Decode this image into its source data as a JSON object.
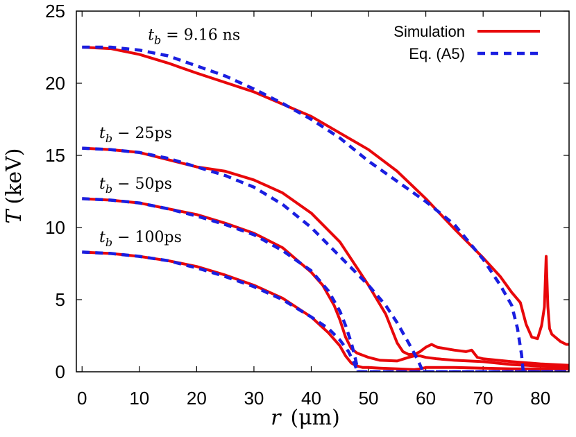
{
  "chart_data": {
    "type": "line",
    "xlabel_var": "r",
    "xlabel_unit": "(μm)",
    "ylabel_var": "T",
    "ylabel_unit": "(keV)",
    "xlim": [
      -1,
      85
    ],
    "ylim": [
      0,
      25
    ],
    "xticks": [
      0,
      10,
      20,
      30,
      40,
      50,
      60,
      70,
      80
    ],
    "yticks": [
      0,
      5,
      10,
      15,
      20,
      25
    ],
    "colors": {
      "simulation": "#e8070a",
      "model": "#1a1ee0"
    },
    "legend": {
      "position": "top-right",
      "entries": [
        {
          "label": "Simulation",
          "style": "solid",
          "color": "#e8070a"
        },
        {
          "label": "Eq. (A5)",
          "style": "dashed",
          "color": "#1a1ee0"
        }
      ]
    },
    "curve_labels": [
      {
        "var": "t",
        "sub": "b",
        "rest": " = 9.16 ns",
        "anchor": [
          11.5,
          23.0
        ]
      },
      {
        "var": "t",
        "sub": "b",
        "rest": " − 25ps",
        "anchor": [
          3.0,
          16.2
        ]
      },
      {
        "var": "t",
        "sub": "b",
        "rest": " − 50ps",
        "anchor": [
          3.0,
          12.7
        ]
      },
      {
        "var": "t",
        "sub": "b",
        "rest": " − 100ps",
        "anchor": [
          3.0,
          9.0
        ]
      }
    ],
    "series": [
      {
        "name": "t_b = 9.16 ns simulation",
        "kind": "simulation",
        "x": [
          0,
          5,
          10,
          15,
          20,
          30,
          40,
          50,
          55,
          60,
          65,
          70,
          73,
          75,
          76.5,
          77.5,
          78.5,
          79.5,
          80.2,
          80.7,
          81.0,
          81.3,
          81.6,
          82.0,
          82.6,
          83.5,
          84.5,
          85
        ],
        "y": [
          22.5,
          22.4,
          22.0,
          21.4,
          20.7,
          19.4,
          17.7,
          15.4,
          13.9,
          12.0,
          9.9,
          7.9,
          6.6,
          5.5,
          4.8,
          3.3,
          2.4,
          2.3,
          3.2,
          4.5,
          8.0,
          4.5,
          3.0,
          2.6,
          2.4,
          2.1,
          1.9,
          1.9
        ]
      },
      {
        "name": "t_b = 9.16 ns Eq. (A5)",
        "kind": "model",
        "x": [
          0,
          5,
          10,
          15,
          20,
          25,
          30,
          35,
          40,
          45,
          50,
          55,
          60,
          65,
          70,
          73,
          75,
          76,
          76.7,
          77,
          85
        ],
        "y": [
          22.5,
          22.5,
          22.3,
          21.9,
          21.2,
          20.5,
          19.6,
          18.6,
          17.5,
          16.2,
          14.6,
          13.2,
          11.8,
          10.2,
          7.8,
          6.0,
          4.6,
          3.0,
          1.2,
          0.0,
          0.0
        ]
      },
      {
        "name": "t_b − 25ps simulation",
        "kind": "simulation",
        "x": [
          0,
          5,
          10,
          15,
          20,
          25,
          30,
          35,
          40,
          45,
          50,
          53,
          55,
          56,
          57,
          58,
          59,
          60,
          61,
          62,
          65,
          67,
          68,
          69,
          70,
          75,
          80,
          85
        ],
        "y": [
          15.5,
          15.4,
          15.2,
          14.7,
          14.2,
          13.9,
          13.3,
          12.4,
          11.0,
          9.0,
          6.0,
          4.0,
          2.0,
          1.4,
          1.2,
          1.2,
          1.4,
          1.7,
          1.9,
          1.7,
          1.5,
          1.4,
          1.5,
          1.0,
          0.9,
          0.7,
          0.55,
          0.45
        ]
      },
      {
        "name": "t_b − 25ps Eq. (A5)",
        "kind": "model",
        "x": [
          0,
          5,
          10,
          15,
          20,
          25,
          30,
          35,
          40,
          45,
          50,
          53,
          55,
          57,
          58.5,
          59.3,
          59.7,
          85
        ],
        "y": [
          15.5,
          15.4,
          15.2,
          14.8,
          14.2,
          13.6,
          12.8,
          11.6,
          10.0,
          8.0,
          6.0,
          4.6,
          3.4,
          2.0,
          0.9,
          0.2,
          0.0,
          0.0
        ]
      },
      {
        "name": "t_b − 50ps simulation",
        "kind": "simulation",
        "x": [
          0,
          5,
          10,
          15,
          20,
          25,
          30,
          35,
          40,
          42,
          44,
          45,
          46,
          47,
          48,
          50,
          52,
          55,
          57,
          58,
          59,
          60,
          62,
          65,
          70,
          75,
          80,
          85
        ],
        "y": [
          12.0,
          11.9,
          11.7,
          11.3,
          10.9,
          10.3,
          9.6,
          8.6,
          6.9,
          6.0,
          4.6,
          3.6,
          2.4,
          1.6,
          1.3,
          1.0,
          0.8,
          0.75,
          1.0,
          1.1,
          1.1,
          1.0,
          0.9,
          0.8,
          0.7,
          0.5,
          0.4,
          0.35
        ]
      },
      {
        "name": "t_b − 50ps Eq. (A5)",
        "kind": "model",
        "x": [
          0,
          5,
          10,
          15,
          20,
          25,
          30,
          35,
          40,
          43,
          45,
          46,
          47,
          47.7,
          48.2,
          85
        ],
        "y": [
          12.0,
          11.9,
          11.7,
          11.3,
          10.8,
          10.2,
          9.5,
          8.4,
          7.0,
          5.6,
          4.2,
          3.2,
          2.0,
          0.9,
          0.0,
          0.0
        ]
      },
      {
        "name": "t_b − 100ps simulation",
        "kind": "simulation",
        "x": [
          0,
          5,
          10,
          15,
          20,
          25,
          30,
          35,
          40,
          43,
          45,
          46,
          47,
          48,
          49,
          50,
          52,
          55,
          58,
          59,
          60,
          65,
          70,
          75,
          80,
          85
        ],
        "y": [
          8.3,
          8.2,
          8.0,
          7.7,
          7.3,
          6.7,
          6.0,
          5.1,
          3.8,
          2.7,
          1.8,
          1.1,
          0.6,
          0.4,
          0.3,
          0.3,
          0.25,
          0.2,
          0.15,
          0.2,
          0.3,
          0.3,
          0.25,
          0.2,
          0.2,
          0.2
        ]
      },
      {
        "name": "t_b − 100ps Eq. (A5)",
        "kind": "model",
        "x": [
          0,
          5,
          10,
          15,
          20,
          25,
          30,
          35,
          40,
          43,
          45,
          46.5,
          47.5,
          48.0,
          48.3,
          85
        ],
        "y": [
          8.3,
          8.2,
          8.0,
          7.7,
          7.2,
          6.6,
          5.9,
          5.0,
          3.8,
          3.0,
          2.2,
          1.4,
          0.6,
          0.1,
          0.0,
          0.0
        ]
      }
    ]
  }
}
